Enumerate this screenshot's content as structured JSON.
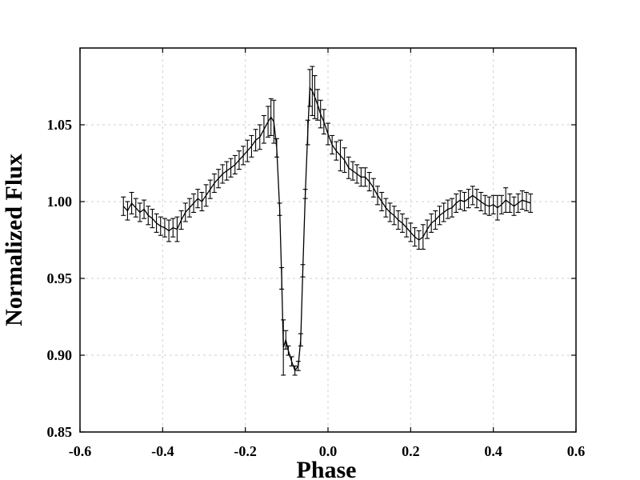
{
  "chart_data": {
    "type": "line",
    "title": "",
    "xlabel": "Phase",
    "ylabel": "Normalized Flux",
    "xlim": [
      -0.6,
      0.6
    ],
    "ylim": [
      0.85,
      1.1
    ],
    "x_ticks": [
      -0.6,
      -0.4,
      -0.2,
      0.0,
      0.2,
      0.4,
      0.6
    ],
    "x_tick_labels": [
      "-0.6",
      "-0.4",
      "-0.2",
      "0.0",
      "0.2",
      "0.4",
      "0.6"
    ],
    "y_ticks": [
      0.85,
      0.9,
      0.95,
      1.0,
      1.05
    ],
    "y_tick_labels": [
      "0.85",
      "0.90",
      "0.95",
      "1.00",
      "1.05"
    ],
    "grid": true,
    "legend": "none",
    "series": [
      {
        "error_bars": true,
        "color": "#000000",
        "points": [
          [
            -0.495,
            0.997,
            0.006
          ],
          [
            -0.485,
            0.994,
            0.006
          ],
          [
            -0.475,
            0.999,
            0.007
          ],
          [
            -0.465,
            0.996,
            0.006
          ],
          [
            -0.455,
            0.993,
            0.006
          ],
          [
            -0.445,
            0.995,
            0.006
          ],
          [
            -0.435,
            0.991,
            0.006
          ],
          [
            -0.425,
            0.989,
            0.006
          ],
          [
            -0.415,
            0.986,
            0.006
          ],
          [
            -0.405,
            0.984,
            0.006
          ],
          [
            -0.395,
            0.983,
            0.006
          ],
          [
            -0.385,
            0.981,
            0.007
          ],
          [
            -0.375,
            0.983,
            0.006
          ],
          [
            -0.365,
            0.982,
            0.008
          ],
          [
            -0.355,
            0.988,
            0.006
          ],
          [
            -0.345,
            0.993,
            0.006
          ],
          [
            -0.335,
            0.996,
            0.006
          ],
          [
            -0.325,
            0.999,
            0.006
          ],
          [
            -0.315,
            1.002,
            0.006
          ],
          [
            -0.305,
            1.0,
            0.006
          ],
          [
            -0.295,
            1.004,
            0.007
          ],
          [
            -0.285,
            1.008,
            0.006
          ],
          [
            -0.275,
            1.012,
            0.006
          ],
          [
            -0.265,
            1.015,
            0.006
          ],
          [
            -0.255,
            1.018,
            0.006
          ],
          [
            -0.245,
            1.02,
            0.006
          ],
          [
            -0.235,
            1.022,
            0.006
          ],
          [
            -0.225,
            1.024,
            0.006
          ],
          [
            -0.215,
            1.027,
            0.006
          ],
          [
            -0.205,
            1.03,
            0.006
          ],
          [
            -0.195,
            1.033,
            0.007
          ],
          [
            -0.185,
            1.036,
            0.007
          ],
          [
            -0.175,
            1.04,
            0.007
          ],
          [
            -0.165,
            1.042,
            0.008
          ],
          [
            -0.155,
            1.047,
            0.009
          ],
          [
            -0.145,
            1.052,
            0.01
          ],
          [
            -0.138,
            1.055,
            0.012
          ],
          [
            -0.131,
            1.052,
            0.014
          ],
          [
            -0.124,
            1.035,
            0.006
          ],
          [
            -0.117,
            0.995,
            0.004
          ],
          [
            -0.112,
            0.95,
            0.007
          ],
          [
            -0.108,
            0.905,
            0.018
          ],
          [
            -0.102,
            0.91,
            0.006
          ],
          [
            -0.096,
            0.903,
            0.003
          ],
          [
            -0.088,
            0.896,
            0.003
          ],
          [
            -0.08,
            0.89,
            0.003
          ],
          [
            -0.072,
            0.893,
            0.003
          ],
          [
            -0.066,
            0.91,
            0.004
          ],
          [
            -0.061,
            0.955,
            0.004
          ],
          [
            -0.055,
            1.005,
            0.003
          ],
          [
            -0.049,
            1.045,
            0.008
          ],
          [
            -0.044,
            1.074,
            0.012
          ],
          [
            -0.038,
            1.072,
            0.016
          ],
          [
            -0.032,
            1.068,
            0.014
          ],
          [
            -0.025,
            1.063,
            0.01
          ],
          [
            -0.018,
            1.057,
            0.009
          ],
          [
            -0.01,
            1.052,
            0.008
          ],
          [
            0.0,
            1.044,
            0.007
          ],
          [
            0.01,
            1.037,
            0.006
          ],
          [
            0.02,
            1.033,
            0.006
          ],
          [
            0.03,
            1.03,
            0.01
          ],
          [
            0.04,
            1.027,
            0.008
          ],
          [
            0.05,
            1.022,
            0.007
          ],
          [
            0.06,
            1.02,
            0.006
          ],
          [
            0.07,
            1.018,
            0.006
          ],
          [
            0.08,
            1.016,
            0.006
          ],
          [
            0.09,
            1.016,
            0.006
          ],
          [
            0.1,
            1.013,
            0.006
          ],
          [
            0.11,
            1.009,
            0.006
          ],
          [
            0.12,
            1.004,
            0.006
          ],
          [
            0.13,
            1.0,
            0.006
          ],
          [
            0.14,
            0.996,
            0.006
          ],
          [
            0.15,
            0.993,
            0.006
          ],
          [
            0.16,
            0.991,
            0.006
          ],
          [
            0.17,
            0.988,
            0.006
          ],
          [
            0.18,
            0.986,
            0.006
          ],
          [
            0.19,
            0.983,
            0.006
          ],
          [
            0.2,
            0.98,
            0.006
          ],
          [
            0.21,
            0.977,
            0.006
          ],
          [
            0.22,
            0.975,
            0.006
          ],
          [
            0.23,
            0.977,
            0.008
          ],
          [
            0.24,
            0.982,
            0.006
          ],
          [
            0.25,
            0.986,
            0.006
          ],
          [
            0.26,
            0.988,
            0.006
          ],
          [
            0.27,
            0.991,
            0.006
          ],
          [
            0.28,
            0.993,
            0.006
          ],
          [
            0.29,
            0.995,
            0.006
          ],
          [
            0.3,
            0.996,
            0.006
          ],
          [
            0.31,
            0.999,
            0.006
          ],
          [
            0.32,
            1.001,
            0.006
          ],
          [
            0.33,
            1.0,
            0.006
          ],
          [
            0.34,
            1.002,
            0.006
          ],
          [
            0.35,
            1.004,
            0.006
          ],
          [
            0.36,
            1.002,
            0.006
          ],
          [
            0.37,
            1.0,
            0.006
          ],
          [
            0.38,
            0.998,
            0.006
          ],
          [
            0.39,
            0.997,
            0.006
          ],
          [
            0.4,
            0.998,
            0.006
          ],
          [
            0.41,
            0.996,
            0.008
          ],
          [
            0.42,
            0.998,
            0.006
          ],
          [
            0.43,
            1.001,
            0.008
          ],
          [
            0.44,
            0.999,
            0.006
          ],
          [
            0.45,
            0.997,
            0.006
          ],
          [
            0.46,
            0.999,
            0.006
          ],
          [
            0.47,
            1.001,
            0.006
          ],
          [
            0.48,
            1.0,
            0.006
          ],
          [
            0.49,
            0.999,
            0.006
          ]
        ]
      }
    ]
  }
}
